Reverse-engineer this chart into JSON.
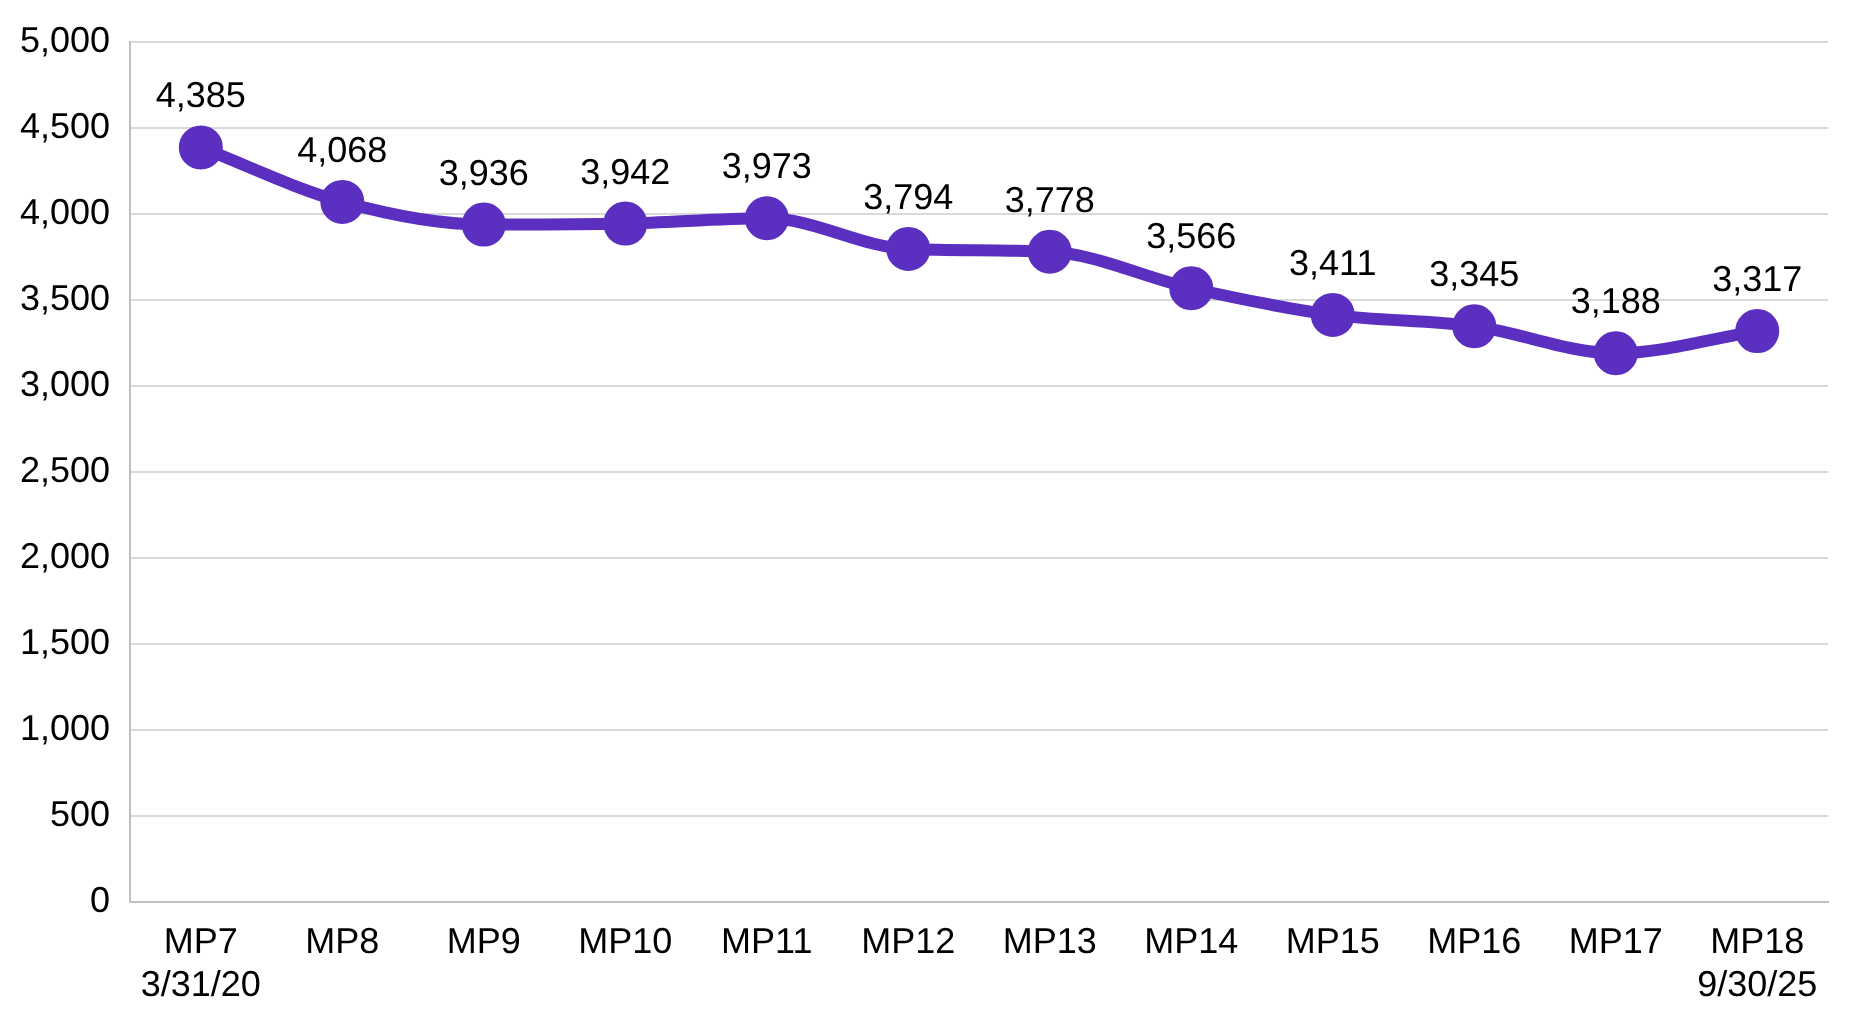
{
  "chart_data": {
    "type": "line",
    "categories": [
      "MP7\n3/31/20",
      "MP8",
      "MP9",
      "MP10",
      "MP11",
      "MP12",
      "MP13",
      "MP14",
      "MP15",
      "MP16",
      "MP17",
      "MP18\n9/30/25"
    ],
    "series": [
      {
        "color": "#5b2fc0",
        "values": [
          4385,
          4068,
          3936,
          3942,
          3973,
          3794,
          3778,
          3566,
          3411,
          3345,
          3188,
          3317
        ],
        "value_labels": [
          "4,385",
          "4,068",
          "3,936",
          "3,942",
          "3,973",
          "3,794",
          "3,778",
          "3,566",
          "3,411",
          "3,345",
          "3,188",
          "3,317"
        ]
      }
    ],
    "ylim": [
      0,
      5000
    ],
    "yticks": [
      {
        "value": 0,
        "label": "0"
      },
      {
        "value": 500,
        "label": "500"
      },
      {
        "value": 1000,
        "label": "1,000"
      },
      {
        "value": 1500,
        "label": "1,500"
      },
      {
        "value": 2000,
        "label": "2,000"
      },
      {
        "value": 2500,
        "label": "2,500"
      },
      {
        "value": 3000,
        "label": "3,000"
      },
      {
        "value": 3500,
        "label": "3,500"
      },
      {
        "value": 4000,
        "label": "4,000"
      },
      {
        "value": 4500,
        "label": "4,500"
      },
      {
        "value": 5000,
        "label": "5,000"
      }
    ],
    "grid": "y",
    "legend": false,
    "marker": "circle",
    "line_style": "solid"
  }
}
